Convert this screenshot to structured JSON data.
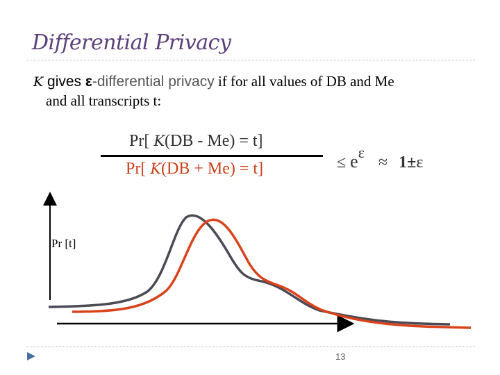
{
  "slide": {
    "title": "Differential Privacy",
    "body": {
      "k_symbol": "K",
      "part1": " gives ",
      "epsilon": "ε",
      "part2": "-differential privacy",
      "part3": " if for all values of DB and Me",
      "line2": "and all transcripts t:"
    },
    "formula": {
      "numer_prefix": "Pr[",
      "numer_k": "K",
      "numer_suffix": "(DB - Me) = t]",
      "denom_prefix": "Pr[",
      "denom_k": "K",
      "denom_suffix": "(DB + Me) = t]",
      "leq": "≤",
      "e": "e",
      "e_exp": "ε",
      "approx": "≈",
      "one_pm": "1±",
      "eps": "ε"
    },
    "plot": {
      "ylabel": "Pr [t]",
      "series_colors": {
        "db_minus_me": "#4a4a55",
        "db_plus_me": "#d9431c"
      }
    },
    "page_number": "13"
  }
}
